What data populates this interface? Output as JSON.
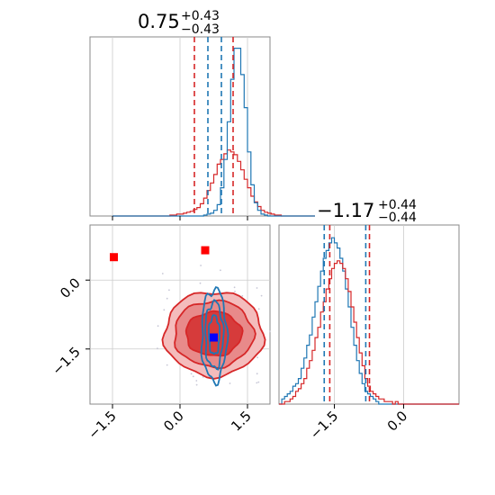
{
  "chart_data": {
    "type": "corner",
    "colors": {
      "red": "#d62728",
      "blue": "#1f77b4",
      "grid": "#cccccc",
      "fill_light": "#f4bcbc",
      "fill_mid": "#e88a8a",
      "fill_dark": "#d63b3b",
      "marker_red": "#ff0000",
      "marker_blue": "#0000ff",
      "scatter": "#c7c7d6"
    },
    "titles": [
      {
        "main": "0.75",
        "sup": "+0.43",
        "sub": "−0.43"
      },
      {
        "main": "−1.17",
        "sup": "+0.44",
        "sub": "−0.44"
      }
    ],
    "param_ranges": [
      [
        -2.0,
        2.0
      ],
      [
        -2.7,
        1.2
      ]
    ],
    "x_ticks": {
      "p1": [
        {
          "value": -1.5,
          "label": "−1.5"
        },
        {
          "value": 0.0,
          "label": "0.0"
        },
        {
          "value": 1.5,
          "label": "1.5"
        }
      ],
      "p2": [
        {
          "value": -1.5,
          "label": "−1.5"
        },
        {
          "value": 0.0,
          "label": "0.0"
        }
      ]
    },
    "y_ticks": {
      "p2": [
        {
          "value": 0.0,
          "label": "0.0"
        },
        {
          "value": -1.5,
          "label": "−1.5"
        }
      ]
    },
    "histograms": {
      "p1": {
        "x_start": -1.5,
        "bin_width": 0.075,
        "blue": [
          0,
          0,
          0,
          0,
          0,
          0,
          0,
          0,
          0,
          0,
          0,
          0,
          0,
          0,
          0,
          0,
          0,
          0,
          0,
          0,
          0,
          0,
          0,
          0,
          0,
          0,
          0,
          1,
          2,
          3,
          6,
          12,
          30,
          60,
          100,
          145,
          178,
          178,
          150,
          115,
          68,
          33,
          14,
          6,
          2,
          1,
          0,
          0,
          0,
          0,
          0,
          0,
          0,
          0,
          0,
          0,
          0,
          0,
          0,
          0
        ],
        "red": [
          0,
          0,
          0,
          0,
          0,
          0,
          0,
          0,
          0,
          0,
          0,
          0,
          0,
          0,
          0,
          0,
          0,
          1,
          1,
          2,
          2,
          3,
          4,
          5,
          7,
          9,
          13,
          19,
          27,
          35,
          44,
          55,
          60,
          66,
          70,
          68,
          65,
          58,
          49,
          39,
          30,
          21,
          15,
          10,
          6,
          4,
          3,
          2,
          1,
          1,
          0,
          0,
          0,
          0,
          0,
          0,
          0,
          0,
          0,
          0
        ],
        "red_quantiles": [
          0.32,
          1.18
        ],
        "blue_quantiles": [
          0.62,
          0.92
        ],
        "ylim": [
          0,
          190
        ]
      },
      "p2": {
        "x_start": -2.7,
        "bin_width": 0.06,
        "blue": [
          0,
          2,
          3,
          4,
          5,
          7,
          8,
          10,
          14,
          18,
          23,
          27,
          34,
          40,
          46,
          52,
          57,
          60,
          63,
          65,
          63,
          61,
          57,
          52,
          45,
          38,
          30,
          23,
          17,
          12,
          8,
          5,
          4,
          3,
          2,
          1,
          0,
          0,
          0,
          0,
          0,
          0,
          0,
          0,
          0,
          0,
          0,
          0,
          0,
          0,
          0,
          0,
          0,
          0,
          0,
          0,
          0,
          0,
          0,
          0,
          0,
          0,
          0,
          0,
          0
        ],
        "red": [
          0,
          0,
          1,
          1,
          2,
          3,
          5,
          6,
          8,
          10,
          14,
          17,
          21,
          26,
          30,
          36,
          40,
          45,
          49,
          53,
          55,
          56,
          55,
          53,
          49,
          44,
          38,
          32,
          26,
          20,
          15,
          10,
          7,
          5,
          4,
          3,
          2,
          2,
          1,
          1,
          1,
          0,
          1,
          0,
          0,
          0,
          0,
          0,
          0,
          0,
          0,
          0,
          0,
          0,
          0,
          0,
          0,
          0,
          0,
          0,
          0,
          0,
          0,
          0,
          0
        ],
        "red_quantiles": [
          -1.6,
          -0.74
        ],
        "blue_quantiles": [
          -1.72,
          -0.82
        ],
        "ylim": [
          0,
          70
        ]
      }
    },
    "scatter_2d": {
      "red_contours": {
        "center": [
          0.75,
          -1.17
        ],
        "levels": [
          {
            "rx": 1.1,
            "ry": 0.92,
            "fill": "fill_light"
          },
          {
            "rx": 0.88,
            "ry": 0.72,
            "fill": "fill_mid"
          },
          {
            "rx": 0.62,
            "ry": 0.48,
            "fill": "fill_dark"
          }
        ]
      },
      "blue_contours": {
        "center": [
          0.76,
          -1.2
        ],
        "levels": [
          {
            "rx": 0.28,
            "ry": 1.0
          },
          {
            "rx": 0.2,
            "ry": 0.72
          },
          {
            "rx": 0.12,
            "ry": 0.42
          }
        ]
      },
      "markers": [
        {
          "x": -1.47,
          "y": 0.5,
          "color": "marker_red"
        },
        {
          "x": 0.56,
          "y": 0.65,
          "color": "marker_red"
        },
        {
          "x": 0.75,
          "y": -1.25,
          "color": "marker_blue"
        }
      ]
    }
  }
}
